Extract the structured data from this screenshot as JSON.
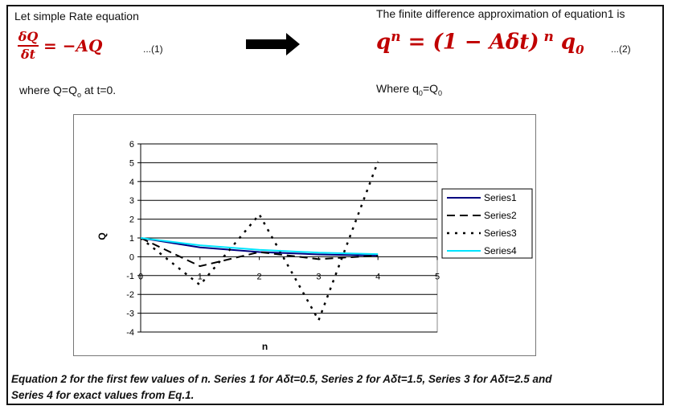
{
  "left_intro": "Let simple Rate equation",
  "equation1": {
    "lhs_numerator": "δQ",
    "lhs_denominator": "δt",
    "rhs": "= −AQ",
    "ref": "...(1)"
  },
  "where_left": {
    "prefix": "where Q=Q",
    "sub": "o",
    "suffix": " at t=0."
  },
  "right_intro": "The finite difference approximation of equation1 is",
  "equation2": {
    "q": "q",
    "exp_n": "n",
    "middle": " =  (1 − Aδt)",
    "exp_n2": " n",
    "q0_base": "q",
    "q0_sub": "0",
    "ref": "...(2)"
  },
  "where_right": {
    "prefix": "Where q",
    "sub": "0",
    "mid": "=Q",
    "sub2": "0"
  },
  "chart_data": {
    "type": "line",
    "x": [
      0,
      1,
      2,
      3,
      4
    ],
    "xlim": [
      0,
      5
    ],
    "ylim": [
      -4,
      6
    ],
    "xticks": [
      "0",
      "1",
      "2",
      "3",
      "4",
      "5"
    ],
    "yticks": [
      "-4",
      "-3",
      "-2",
      "-1",
      "0",
      "1",
      "2",
      "3",
      "4",
      "5",
      "6"
    ],
    "xlabel": "n",
    "ylabel": "Q",
    "grid": "horizontal",
    "legend_position": "right",
    "series": [
      {
        "name": "Series1",
        "values": [
          1,
          0.5,
          0.25,
          0.125,
          0.0625
        ],
        "color": "#000080",
        "dash": "solid"
      },
      {
        "name": "Series2",
        "values": [
          1,
          -0.5,
          0.25,
          -0.125,
          0.0625
        ],
        "color": "#000000",
        "dash": "long-dash"
      },
      {
        "name": "Series3",
        "values": [
          1,
          -1.5,
          2.25,
          -3.375,
          5.06
        ],
        "color": "#000000",
        "dash": "dotted"
      },
      {
        "name": "Series4",
        "values": [
          1,
          0.61,
          0.37,
          0.22,
          0.14
        ],
        "color": "#00e5ff",
        "dash": "solid"
      }
    ]
  },
  "caption": {
    "line1": "Equation 2 for the first few values of n. Series 1 for Aδt=0.5, Series 2 for Aδt=1.5, Series 3 for Aδt=2.5 and",
    "line2": "Series 4 for exact values from Eq.1."
  }
}
